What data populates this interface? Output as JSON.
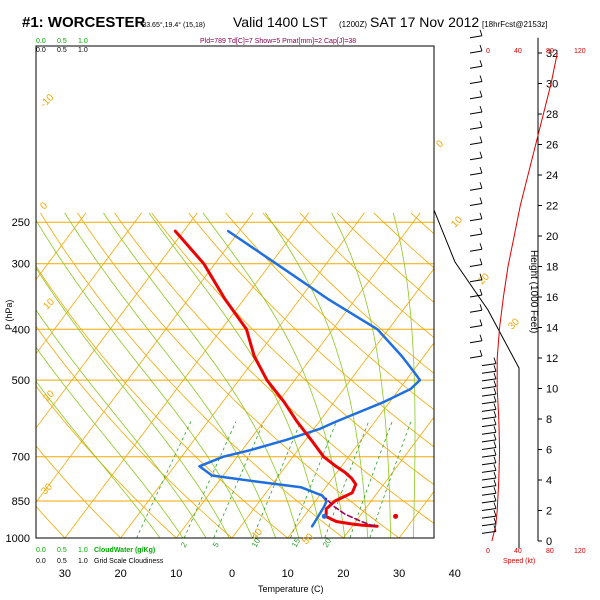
{
  "header": {
    "station": "#1: WORCESTER",
    "coords": "-33.65°,19.4° (15,18)",
    "valid": "Valid 1400 LST",
    "valid_utc": "(1200Z)",
    "date": "SAT 17 Nov 2012",
    "forecast": "[18hrFcst@2153z]",
    "indices": "Pld=789 Td[C]=7 Show=5 Pmat[mm]=2 Cap[J]=38"
  },
  "labels": {
    "p_axis": "P (hPa)",
    "t_axis": "Temperature (C)",
    "h_axis": "Height (1000 Feet)",
    "cloudwater": "CloudWater (g/Kg)",
    "cloudiness": "Grid Scale Cloudiness",
    "speed": "Speed (kt)",
    "legend_top_green": [
      "0.0",
      "0.5",
      "1.0"
    ],
    "legend_top_black": [
      "0.0",
      "0.5",
      "1.0"
    ],
    "legend_bot_green": [
      "0.0",
      "0.5",
      "1.0"
    ],
    "legend_bot_black": [
      "0.0",
      "0.5",
      "1.0"
    ],
    "speed_ticks_top": [
      "0",
      "40",
      "80",
      "120"
    ],
    "speed_ticks_bot": [
      "0",
      "40",
      "80",
      "120"
    ]
  },
  "colors": {
    "isotherm": "#f0a800",
    "dry_adiabat": "#f0a800",
    "moist_adiabat": "#8cc820",
    "mixing_ratio": "#2ca02c",
    "temperature": "#ee0000",
    "dewpoint": "#1f6fe0",
    "parcel": "#9a0060",
    "wind_speed": "#dd0000",
    "cloud": "#00aa00"
  },
  "chart_data": {
    "type": "skew-t",
    "pressure_levels": [
      250,
      300,
      400,
      500,
      700,
      850,
      1000
    ],
    "temperature_ticks": [
      -30,
      -20,
      -10,
      0,
      10,
      20,
      30,
      40
    ],
    "height_ticks": [
      0,
      2,
      4,
      6,
      8,
      10,
      12,
      14,
      16,
      18,
      20,
      22,
      24,
      26,
      28,
      30,
      32
    ],
    "dry_adiabat_labels": [
      "-10",
      "0",
      "10",
      "20",
      "30",
      "40",
      "50",
      "0",
      "10",
      "20",
      "30"
    ],
    "moist_adiabat_labels": [
      "2",
      "5",
      "10",
      "15",
      "20"
    ],
    "mixing_ratio_labels": [
      "2",
      "5",
      "10",
      "15",
      "20"
    ],
    "series": [
      {
        "name": "Temperature",
        "pressure": [
          950,
          945,
          940,
          930,
          910,
          880,
          850,
          820,
          790,
          770,
          750,
          730,
          700,
          650,
          600,
          550,
          500,
          450,
          400,
          350,
          300,
          260
        ],
        "temperature": [
          24.5,
          21.5,
          19.5,
          16.5,
          14.0,
          13.0,
          13.5,
          15.5,
          15.0,
          13.5,
          11.5,
          9.0,
          5.5,
          1.0,
          -4.0,
          -9.0,
          -15.0,
          -20.5,
          -25.5,
          -33.5,
          -42.0,
          -51.5
        ]
      },
      {
        "name": "Dewpoint",
        "pressure": [
          950,
          930,
          900,
          870,
          850,
          830,
          800,
          780,
          760,
          730,
          700,
          680,
          650,
          620,
          600,
          550,
          520,
          500,
          480,
          450,
          400,
          350,
          300,
          260
        ],
        "dewpoint": [
          12.8,
          12.7,
          12.5,
          12.3,
          12.0,
          10.5,
          5.5,
          -3.5,
          -12.0,
          -15.5,
          -12.5,
          -8.5,
          -3.5,
          1.0,
          3.0,
          9.0,
          12.0,
          12.5,
          10.0,
          6.0,
          -2.0,
          -15.0,
          -29.0,
          -42.0
        ]
      },
      {
        "name": "Parcel",
        "pressure": [
          950,
          930,
          900,
          870,
          840
        ],
        "temperature": [
          24.0,
          21.0,
          17.0,
          14.0,
          11.5
        ]
      }
    ],
    "surface_markers": {
      "temperature": 26.0,
      "dewpoint": 15.0,
      "pressure": 950
    },
    "wind_speed_profile": {
      "height_kft": [
        0,
        1,
        2,
        4,
        6,
        8,
        10,
        12,
        14,
        16,
        18,
        20,
        22,
        24,
        26,
        28,
        30,
        32
      ],
      "speed_kt": [
        5,
        10,
        12,
        14,
        15,
        14,
        12,
        12,
        15,
        20,
        26,
        34,
        42,
        52,
        62,
        72,
        82,
        90
      ]
    },
    "wind_barbs_kft": [
      0.5,
      1,
      1.5,
      2,
      2.5,
      3,
      3.5,
      4,
      4.5,
      5,
      5.5,
      6,
      6.5,
      7,
      7.5,
      8,
      8.5,
      9,
      9.5,
      10,
      10.5,
      11,
      11.5,
      12,
      13,
      14,
      15,
      16,
      17,
      18,
      19,
      20,
      21,
      22,
      23,
      24,
      25,
      26,
      27,
      28,
      29,
      30,
      31,
      32,
      33
    ]
  }
}
